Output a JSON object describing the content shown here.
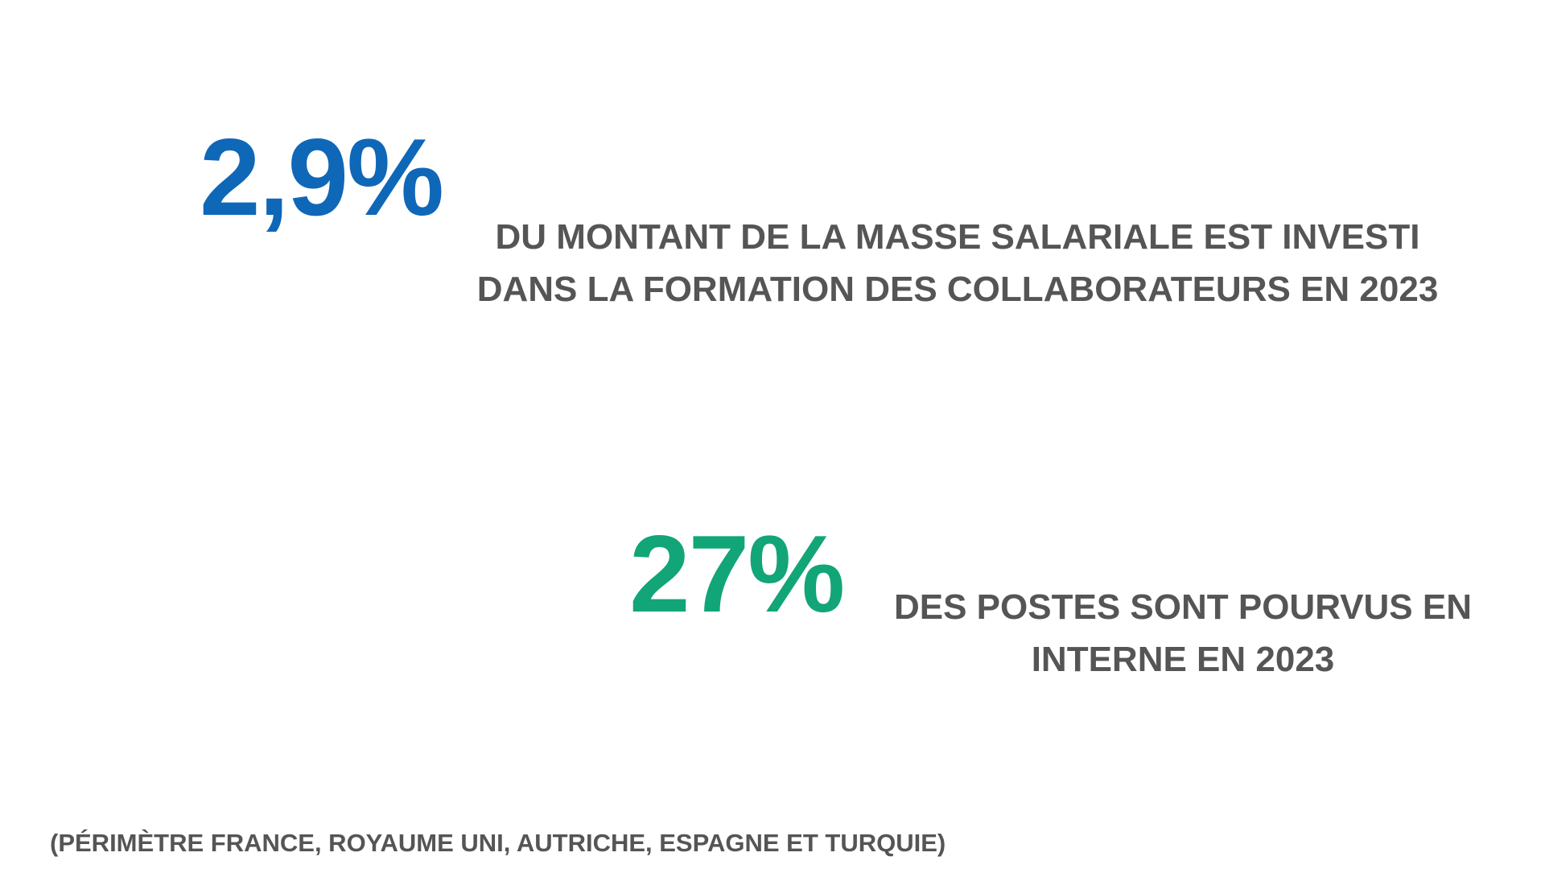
{
  "stat1": {
    "value": "2,9%",
    "color": "#0F67B8",
    "caption_line1": "DU MONTANT DE LA MASSE SALARIALE EST INVESTI",
    "caption_line2": "DANS LA FORMATION DES COLLABORATEURS EN 2023"
  },
  "stat2": {
    "value": "27%",
    "color": "#12A577",
    "caption_line1": "DES POSTES SONT POURVUS EN",
    "caption_line2": "INTERNE EN 2023"
  },
  "footnote": "(PÉRIMÈTRE FRANCE, ROYAUME UNI, AUTRICHE, ESPAGNE ET TURQUIE)"
}
